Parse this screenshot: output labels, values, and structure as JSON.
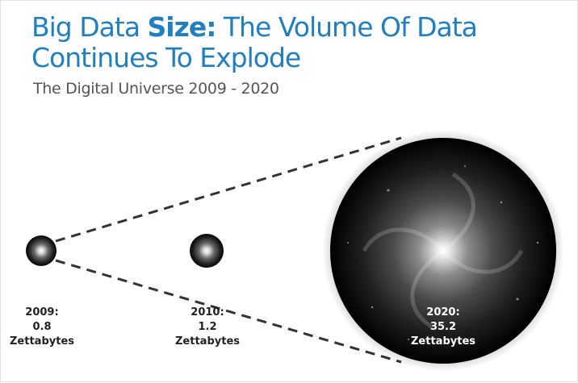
{
  "slide": {
    "title_part1": "Big Data ",
    "title_emphasis": "Size:",
    "title_part2": " The Volume Of Data Continues To Explode",
    "subtitle": "The Digital Universe 2009 - 2020",
    "accent_color": "#1f7fbf",
    "text_color": "#222222"
  },
  "items": [
    {
      "year": "2009:",
      "value": "0.8",
      "unit": "Zettabytes"
    },
    {
      "year": "2010:",
      "value": "1.2",
      "unit": "Zettabytes"
    },
    {
      "year": "2020:",
      "value": "35.2",
      "unit": "Zettabytes"
    }
  ],
  "icons": {
    "sphere_2009": "small-galaxy-sphere-icon",
    "sphere_2010": "small-galaxy-sphere-icon",
    "sphere_2020": "large-galaxy-sphere-icon"
  }
}
